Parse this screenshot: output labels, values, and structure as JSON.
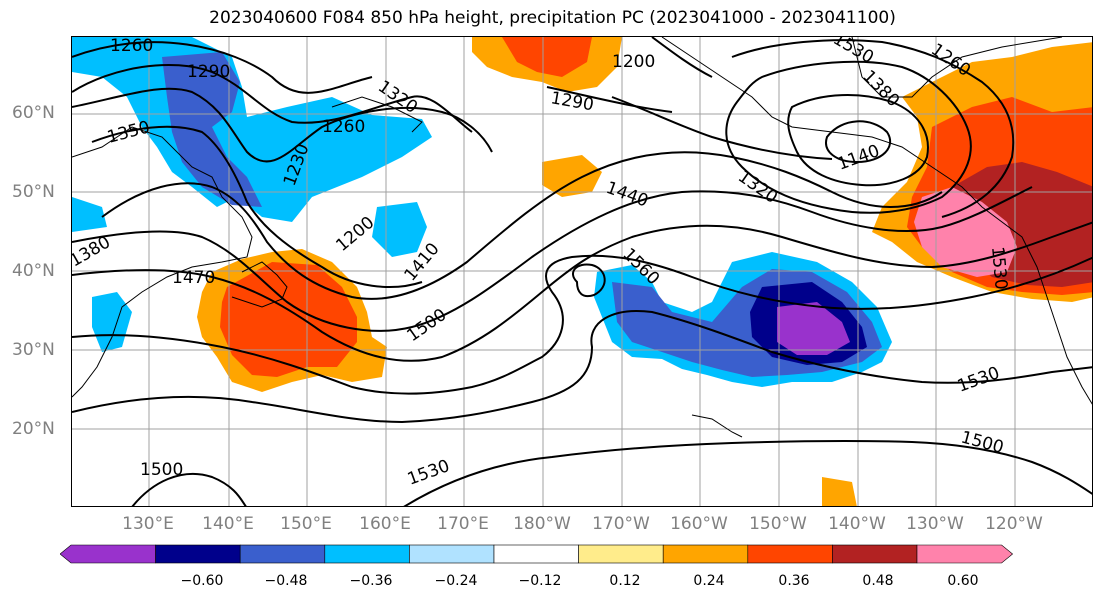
{
  "title": "2023040600 F084 850 hPa height, precipitation PC (2023041000 - 2023041100)",
  "latitude_labels": [
    "60°N",
    "50°N",
    "40°N",
    "30°N",
    "20°N"
  ],
  "longitude_labels": [
    "130°E",
    "140°E",
    "150°E",
    "160°E",
    "170°E",
    "180°W",
    "170°W",
    "160°W",
    "150°W",
    "140°W",
    "130°W",
    "120°W"
  ],
  "contour_labels": [
    "1260",
    "1290",
    "1320",
    "1350",
    "1230",
    "1260",
    "1290",
    "1200",
    "1380",
    "1470",
    "1410",
    "1500",
    "1440",
    "1560",
    "1500",
    "1530",
    "1500",
    "1530",
    "1530",
    "1320",
    "1140",
    "1260",
    "1200",
    "1380",
    "1530"
  ],
  "colorbar": {
    "ticks": [
      "−0.60",
      "−0.48",
      "−0.36",
      "−0.24",
      "−0.12",
      "0.12",
      "0.24",
      "0.36",
      "0.48",
      "0.60"
    ],
    "colors": [
      "#9932cc",
      "#00008b",
      "#3a5fcd",
      "#00bfff",
      "#b0e2ff",
      "#ffffff",
      "#ffec8b",
      "#ffa500",
      "#ff4500",
      "#b22222",
      "#ff82ab"
    ]
  }
}
